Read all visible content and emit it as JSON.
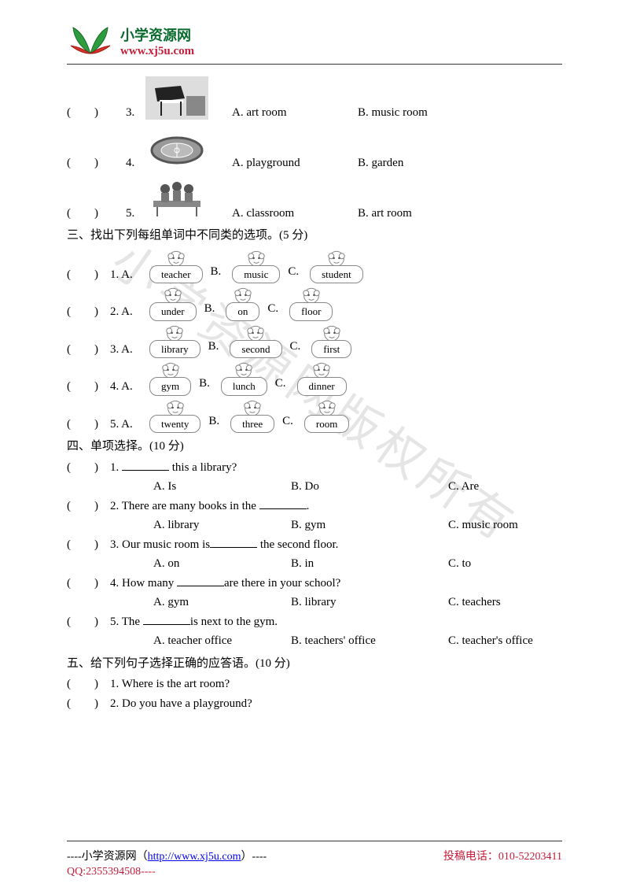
{
  "header": {
    "title": "小学资源网",
    "url": "www.xj5u.com"
  },
  "watermark": "小学资源网版权所有",
  "section2_questions": [
    {
      "num": "3.",
      "icon": "piano",
      "optA": "A. art room",
      "optB": "B. music room"
    },
    {
      "num": "4.",
      "icon": "playground",
      "optA": "A. playground",
      "optB": "B. garden"
    },
    {
      "num": "5.",
      "icon": "students-table",
      "optA": "A. classroom",
      "optB": "B. art room"
    }
  ],
  "section3": {
    "title": "三、找出下列每组单词中不同类的选项。(5 分)",
    "rows": [
      {
        "num": "1. A.",
        "a": "teacher",
        "b": "music",
        "c": "student"
      },
      {
        "num": "2. A.",
        "a": "under",
        "b": "on",
        "c": "floor"
      },
      {
        "num": "3. A.",
        "a": "library",
        "b": "second",
        "c": "first"
      },
      {
        "num": "4. A.",
        "a": "gym",
        "b": "lunch",
        "c": "dinner"
      },
      {
        "num": "5. A.",
        "a": "twenty",
        "b": "three",
        "c": "room"
      }
    ],
    "labelB": "B.",
    "labelC": "C."
  },
  "section4": {
    "title": "四、单项选择。(10 分)",
    "questions": [
      {
        "num": "1.",
        "stem_pre": "",
        "stem_post": " this a library?",
        "a": "A. Is",
        "b": "B. Do",
        "c": "C. Are"
      },
      {
        "num": "2.",
        "stem_pre": "There are many books in the ",
        "stem_post": ".",
        "a": "A. library",
        "b": "B. gym",
        "c": "C. music room"
      },
      {
        "num": "3.",
        "stem_pre": "Our music room is",
        "stem_post": " the second floor.",
        "a": "A. on",
        "b": "B. in",
        "c": "C. to"
      },
      {
        "num": "4.",
        "stem_pre": "How many ",
        "stem_post": "are there in your school?",
        "a": "A. gym",
        "b": "B. library",
        "c": "C. teachers"
      },
      {
        "num": "5.",
        "stem_pre": "The ",
        "stem_post": "is next to the gym.",
        "a": "A. teacher office",
        "b": "B. teachers' office",
        "c": "C. teacher's office"
      }
    ]
  },
  "section5": {
    "title": "五、给下列句子选择正确的应答语。(10 分)",
    "questions": [
      {
        "num": "1.",
        "text": "Where is the art room?"
      },
      {
        "num": "2.",
        "text": "Do you have a playground?"
      }
    ]
  },
  "footer": {
    "line1_pre": "----小学资源网（",
    "link": "http://www.xj5u.com",
    "line1_post": "）----",
    "phone": "投稿电话：010-52203411",
    "qq": "QQ:2355394508----"
  },
  "paren": "(　　) "
}
